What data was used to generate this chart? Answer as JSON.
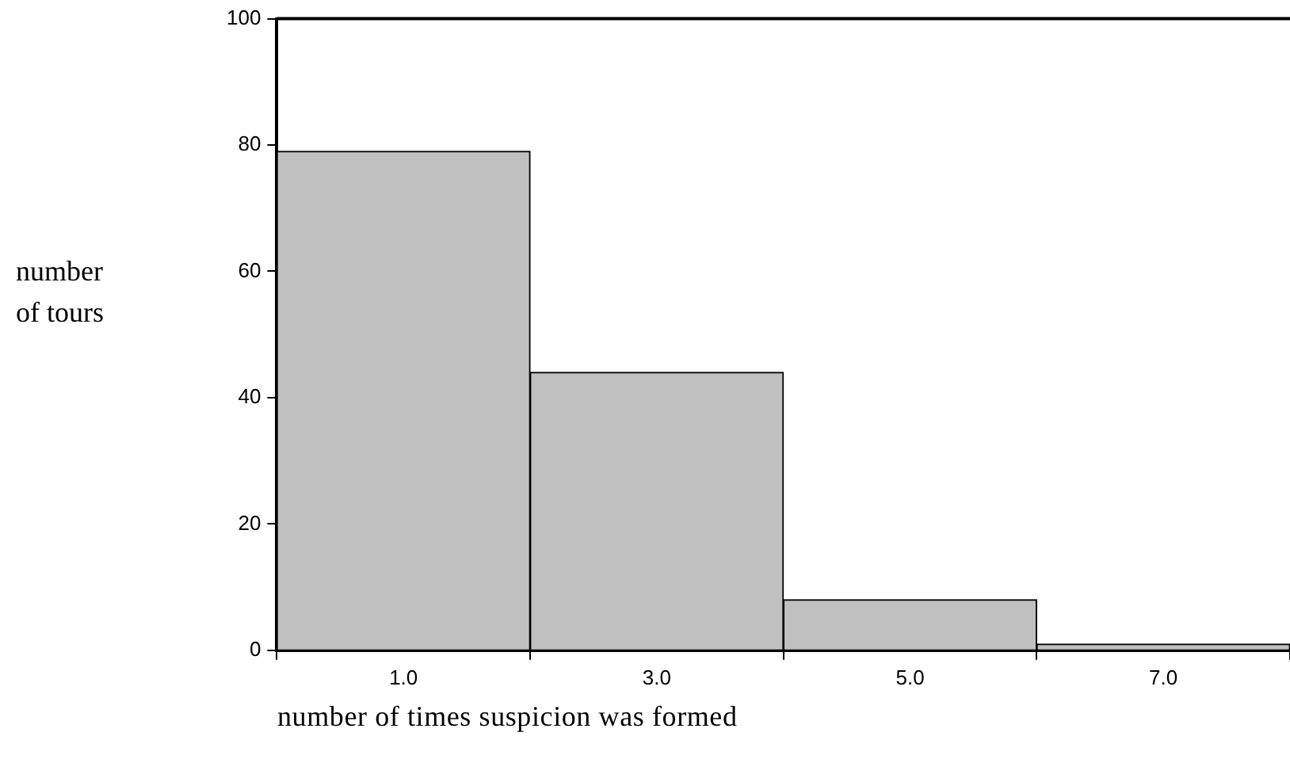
{
  "chart_data": {
    "type": "histogram",
    "xlabel": "number of times suspicion was formed",
    "ylabel": "number of tours",
    "bins": [
      0,
      2,
      4,
      6,
      8
    ],
    "values": [
      79,
      44,
      8,
      1
    ],
    "color": "#c0c0c0",
    "xlim": [
      0,
      8
    ],
    "xticks": [
      {
        "value": 1,
        "label": "1.0"
      },
      {
        "value": 3,
        "label": "3.0"
      },
      {
        "value": 5,
        "label": "5.0"
      },
      {
        "value": 7,
        "label": "7.0"
      }
    ],
    "ylim": [
      0,
      100
    ],
    "yticks": [
      0,
      20,
      40,
      60,
      80,
      100
    ],
    "grid": false,
    "legend": false
  }
}
